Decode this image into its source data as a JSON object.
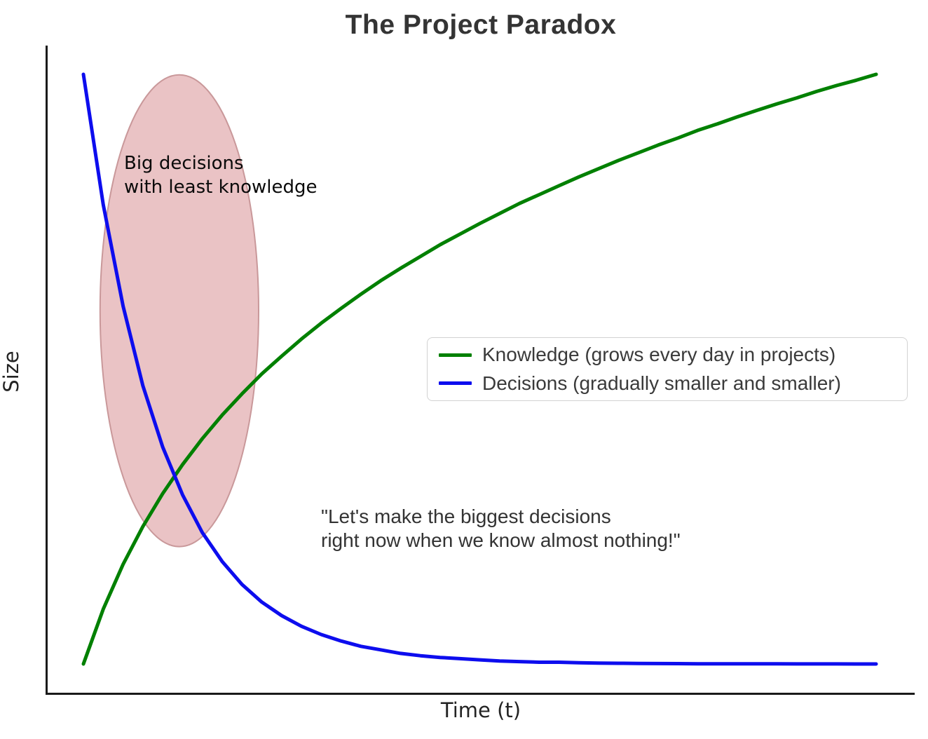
{
  "title": "The Project Paradox",
  "axes": {
    "xlabel": "Time (t)",
    "ylabel": "Size"
  },
  "colors": {
    "knowledge_line": "#008000",
    "decisions_line": "#0d0dee",
    "ellipse_fill": "#eac3c5",
    "ellipse_edge": "#c9989a",
    "spine": "#1a1a1a",
    "title_text": "#343434",
    "annotation_text": "#0a0a0a",
    "quote_text": "#333333",
    "legend_border": "#d2d2d2"
  },
  "annotations": {
    "big_decisions": {
      "line1": "Big decisions",
      "line2": "with least knowledge"
    },
    "quote": {
      "line1": "\"Let's make the biggest decisions",
      "line2": "right now when we know almost nothing!\""
    }
  },
  "legend": {
    "items": [
      {
        "label": "Knowledge (grows every day in projects)",
        "color": "#008000"
      },
      {
        "label": "Decisions (gradually smaller and smaller)",
        "color": "#0d0dee"
      }
    ]
  },
  "chart_data": {
    "type": "line",
    "title": "The Project Paradox",
    "xlabel": "Time (t)",
    "ylabel": "Size",
    "xlim": [
      0,
      10
    ],
    "ylim": [
      0,
      1.05
    ],
    "grid": false,
    "axis_ticks": "none",
    "legend_position": "center-right",
    "x": [
      0,
      0.25,
      0.5,
      0.75,
      1,
      1.25,
      1.5,
      1.75,
      2,
      2.25,
      2.5,
      2.75,
      3,
      3.25,
      3.5,
      3.75,
      4,
      4.25,
      4.5,
      4.75,
      5,
      5.25,
      5.5,
      5.75,
      6,
      6.25,
      6.5,
      6.75,
      7,
      7.25,
      7.5,
      7.75,
      8,
      8.25,
      8.5,
      8.75,
      9,
      9.25,
      9.5,
      9.75,
      10
    ],
    "series": [
      {
        "name": "Knowledge (grows every day in projects)",
        "color": "#008000",
        "formula": "ln(1+t)/ln(11)",
        "values": [
          0,
          0.093,
          0.169,
          0.233,
          0.289,
          0.338,
          0.382,
          0.422,
          0.458,
          0.492,
          0.522,
          0.551,
          0.578,
          0.603,
          0.627,
          0.65,
          0.671,
          0.691,
          0.711,
          0.729,
          0.747,
          0.764,
          0.781,
          0.796,
          0.811,
          0.826,
          0.84,
          0.854,
          0.867,
          0.88,
          0.892,
          0.905,
          0.916,
          0.928,
          0.939,
          0.95,
          0.96,
          0.971,
          0.981,
          0.99,
          1.0
        ]
      },
      {
        "name": "Decisions (gradually smaller and smaller)",
        "color": "#0d0dee",
        "formula": "exp(-t)",
        "values": [
          1,
          0.779,
          0.607,
          0.472,
          0.368,
          0.287,
          0.223,
          0.174,
          0.135,
          0.105,
          0.082,
          0.064,
          0.05,
          0.039,
          0.03,
          0.024,
          0.018,
          0.014,
          0.011,
          0.009,
          0.007,
          0.005,
          0.004,
          0.003,
          0.003,
          0.002,
          0.0015,
          0.0012,
          0.0009,
          0.0007,
          0.0006,
          0.0004,
          0.0003,
          0.0003,
          0.0002,
          0.0002,
          0.0001,
          0.0001,
          0.0001,
          0.0,
          0.0
        ]
      }
    ],
    "ellipse_annotation": {
      "center_x": 1.21,
      "center_y": 0.599,
      "rx": 1.0,
      "ry": 0.4
    }
  }
}
